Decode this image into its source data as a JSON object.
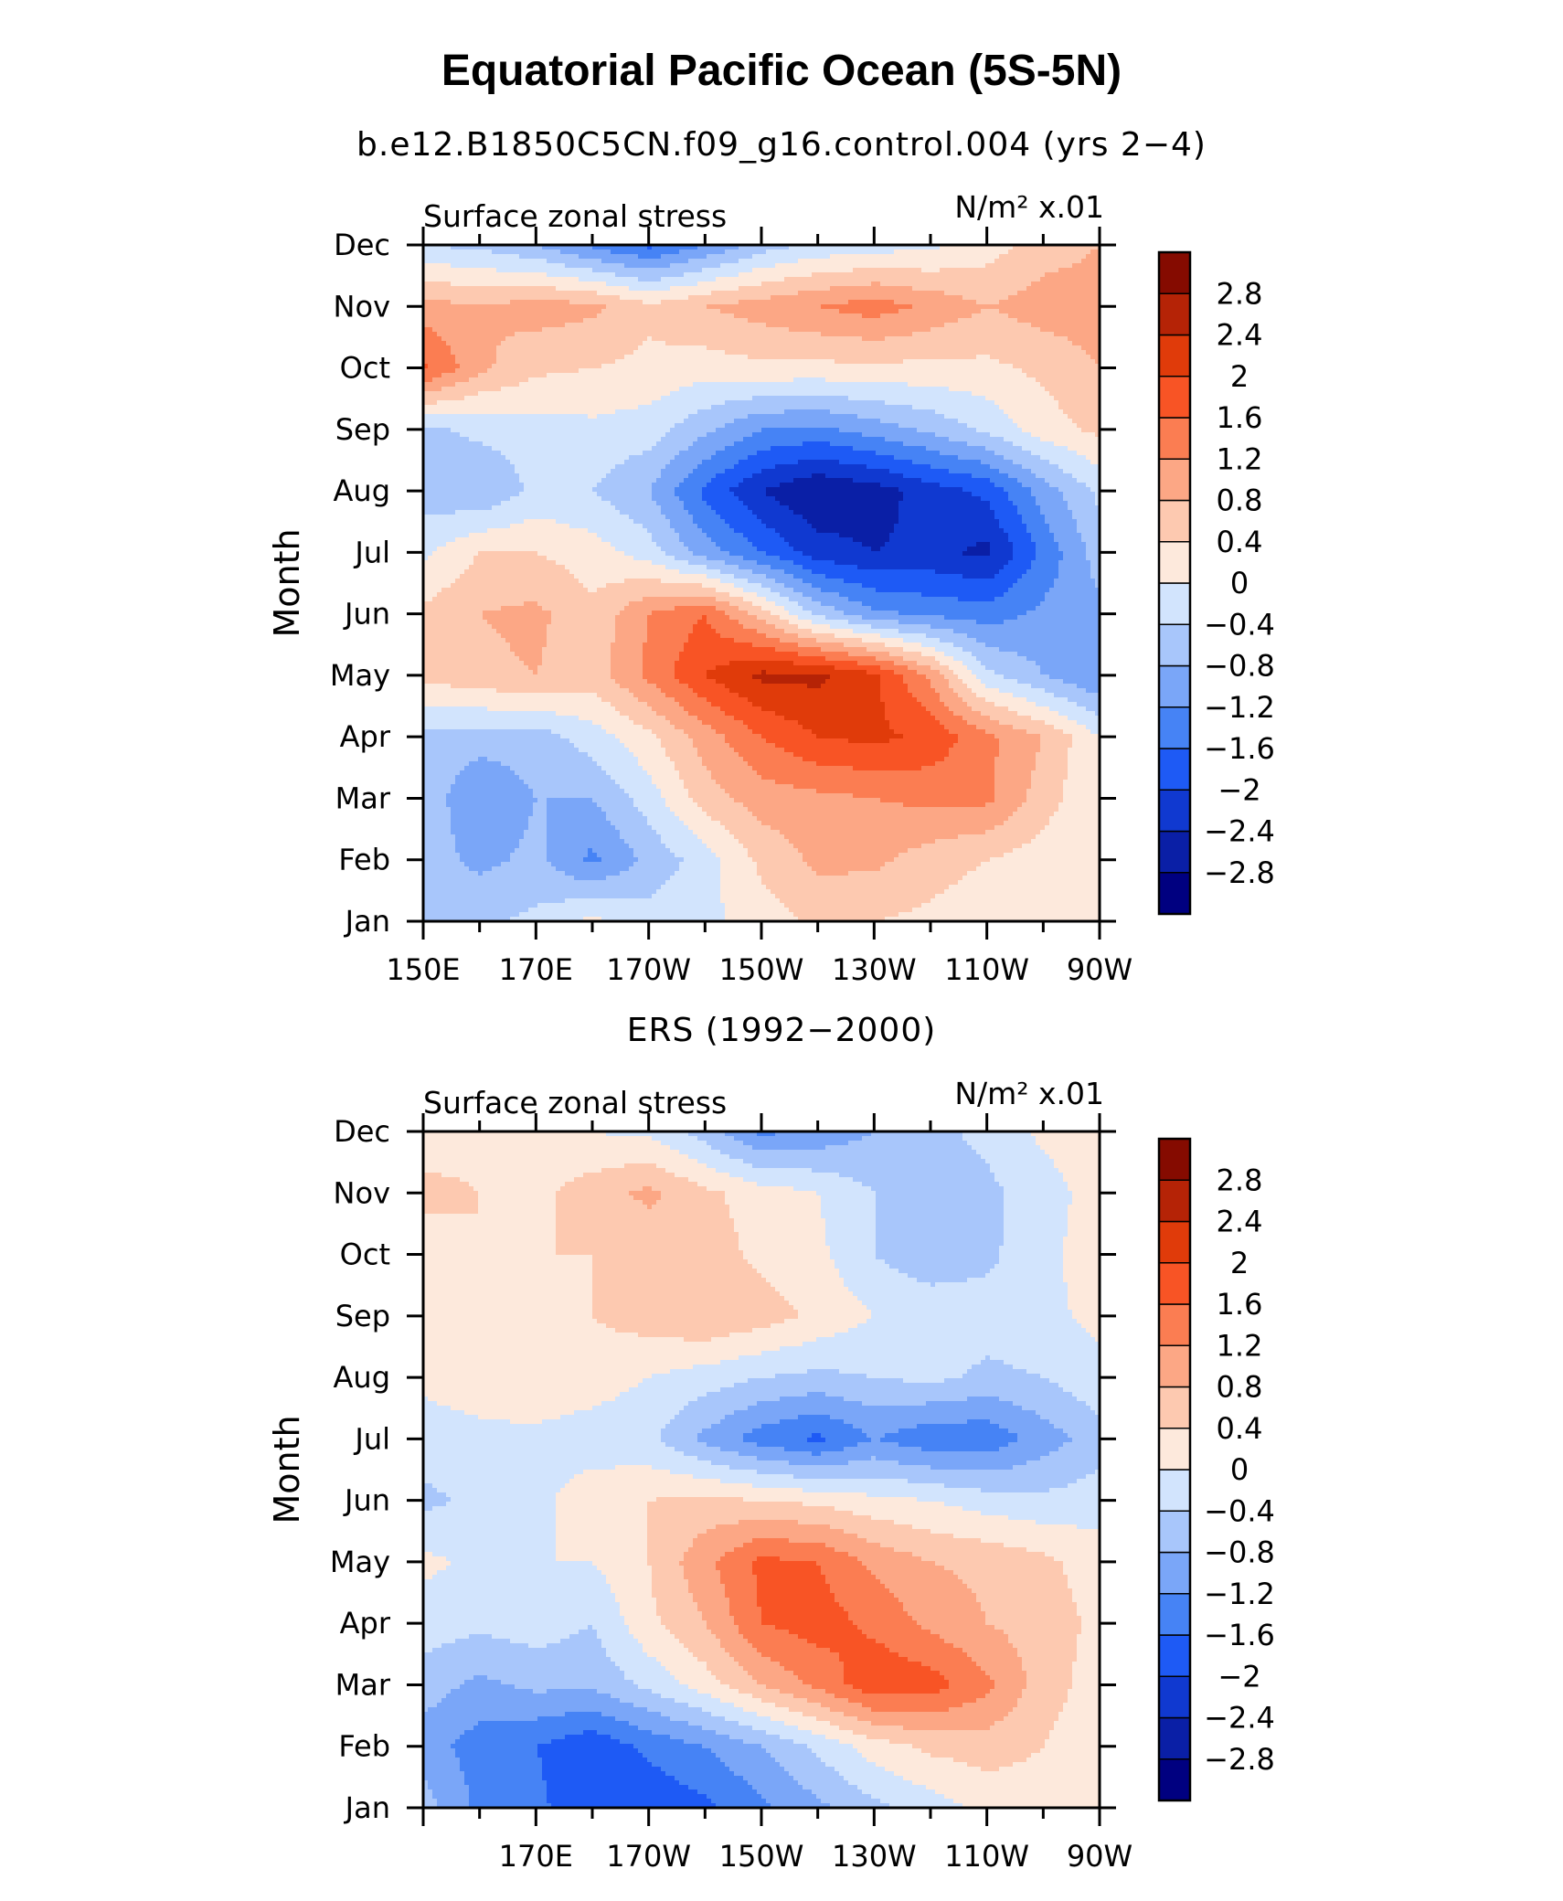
{
  "title": "Equatorial Pacific Ocean (5S-5N)",
  "colors": [
    "#000080",
    "#0a1fa6",
    "#1039d0",
    "#1e5af5",
    "#4683f5",
    "#7aa6f8",
    "#a8c6fb",
    "#d2e4fd",
    "#fde9dc",
    "#fdc9b0",
    "#fca785",
    "#fb7d52",
    "#f85425",
    "#e03b0a",
    "#b52306",
    "#850b00"
  ],
  "chart_data": [
    {
      "type": "heatmap",
      "subtitle": "b.e12.B1850C5CN.f09_g16.control.004 (yrs 2−4)",
      "left_label": "Surface zonal stress",
      "right_label": "N/m² x.01",
      "ylabel": "Month",
      "months": [
        "Jan",
        "Feb",
        "Mar",
        "Apr",
        "May",
        "Jun",
        "Jul",
        "Aug",
        "Sep",
        "Oct",
        "Nov",
        "Dec"
      ],
      "x_ticks": [
        "150E",
        "170E",
        "170W",
        "150W",
        "130W",
        "110W",
        "90W"
      ],
      "xlim_degE": [
        150,
        270
      ],
      "levels": [
        "−2.8",
        "−2.4",
        "−2",
        "−1.6",
        "−1.2",
        "−0.8",
        "−0.4",
        "0",
        "0.4",
        "0.8",
        "1.2",
        "1.6",
        "2",
        "2.4",
        "2.8"
      ],
      "lon_degE": [
        150,
        160,
        170,
        180,
        190,
        200,
        210,
        220,
        230,
        240,
        250,
        260,
        270
      ],
      "values": [
        [
          -0.5,
          -0.5,
          -0.3,
          0.1,
          -0.2,
          -0.1,
          0.2,
          0.5,
          0.4,
          0.3,
          0.1,
          0.1,
          0.0
        ],
        [
          -0.6,
          -0.9,
          -0.7,
          -1.3,
          -0.7,
          -0.2,
          0.5,
          0.9,
          0.9,
          0.6,
          0.4,
          0.2,
          0.0
        ],
        [
          -0.5,
          -1.2,
          -0.8,
          -0.8,
          -0.2,
          0.6,
          1.0,
          1.1,
          1.2,
          1.3,
          1.3,
          0.6,
          0.0
        ],
        [
          -0.5,
          -0.6,
          -0.6,
          -0.2,
          0.3,
          1.0,
          1.6,
          2.0,
          2.1,
          1.9,
          1.3,
          0.8,
          0.0
        ],
        [
          0.5,
          0.7,
          0.8,
          0.6,
          1.3,
          2.0,
          2.5,
          2.5,
          2.1,
          1.1,
          -0.3,
          -0.8,
          -1.2
        ],
        [
          0.5,
          0.8,
          0.9,
          0.5,
          1.2,
          1.6,
          0.6,
          -0.5,
          -1.1,
          -1.3,
          -1.4,
          -1.1,
          -0.9
        ],
        [
          -0.1,
          0.4,
          0.4,
          0.2,
          -0.2,
          -1.0,
          -1.6,
          -2.2,
          -2.4,
          -2.3,
          -2.5,
          -1.5,
          -0.6
        ],
        [
          -0.6,
          -0.8,
          -0.3,
          -0.4,
          -0.8,
          -1.7,
          -2.4,
          -2.8,
          -2.6,
          -2.2,
          -1.9,
          -1.0,
          -0.3
        ],
        [
          -0.5,
          -0.3,
          -0.2,
          -0.1,
          -0.2,
          -0.7,
          -1.2,
          -1.3,
          -1.0,
          -0.7,
          -0.3,
          0.2,
          0.5
        ],
        [
          1.7,
          0.9,
          0.5,
          0.4,
          0.3,
          0.2,
          0.3,
          0.3,
          0.3,
          0.3,
          0.3,
          0.5,
          0.8
        ],
        [
          1.0,
          0.8,
          1.0,
          0.9,
          0.5,
          0.8,
          1.0,
          1.2,
          1.4,
          1.1,
          0.8,
          1.0,
          1.0
        ],
        [
          -0.4,
          -0.5,
          -0.8,
          -1.3,
          -1.7,
          -1.2,
          -0.6,
          -0.3,
          -0.2,
          -0.1,
          0.2,
          0.6,
          0.8
        ]
      ]
    },
    {
      "type": "heatmap",
      "subtitle": "ERS (1992−2000)",
      "left_label": "Surface zonal stress",
      "right_label": "N/m² x.01",
      "ylabel": "Month",
      "months": [
        "Jan",
        "Feb",
        "Mar",
        "Apr",
        "May",
        "Jun",
        "Jul",
        "Aug",
        "Sep",
        "Oct",
        "Nov",
        "Dec"
      ],
      "x_ticks": [
        "",
        "170E",
        "170W",
        "150W",
        "130W",
        "110W",
        "90W"
      ],
      "xlim_degE": [
        150,
        270
      ],
      "levels": [
        "−2.8",
        "−2.4",
        "−2",
        "−1.6",
        "−1.2",
        "−0.8",
        "−0.4",
        "0",
        "0.4",
        "0.8",
        "1.2",
        "1.6",
        "2",
        "2.4",
        "2.8"
      ],
      "lon_degE": [
        150,
        160,
        170,
        180,
        190,
        200,
        210,
        220,
        230,
        240,
        250,
        260,
        270
      ],
      "values": [
        [
          -0.6,
          -1.3,
          -1.5,
          -1.9,
          -1.9,
          -1.7,
          -1.3,
          -0.9,
          -0.5,
          -0.2,
          0.1,
          0.2,
          0.1
        ],
        [
          -1.0,
          -1.4,
          -1.6,
          -1.9,
          -1.5,
          -1.2,
          -0.8,
          -0.3,
          0.2,
          0.5,
          0.6,
          0.4,
          0.1
        ],
        [
          -0.6,
          -0.9,
          -0.7,
          -0.7,
          -0.3,
          0.2,
          0.8,
          1.3,
          1.9,
          1.8,
          1.3,
          0.6,
          0.2
        ],
        [
          -0.2,
          -0.3,
          -0.2,
          -0.4,
          0.3,
          0.8,
          1.6,
          1.8,
          1.5,
          1.1,
          0.8,
          0.6,
          0.3
        ],
        [
          0.1,
          -0.1,
          0.0,
          0.0,
          0.4,
          1.1,
          1.7,
          1.6,
          1.1,
          0.8,
          0.7,
          0.5,
          0.2
        ],
        [
          -0.5,
          -0.3,
          -0.1,
          0.2,
          0.4,
          0.5,
          0.4,
          0.3,
          0.1,
          0.0,
          -0.2,
          -0.3,
          -0.2
        ],
        [
          -0.2,
          -0.1,
          -0.1,
          -0.2,
          -0.3,
          -0.9,
          -1.4,
          -1.7,
          -1.2,
          -1.5,
          -1.5,
          -1.0,
          -0.6
        ],
        [
          0.1,
          0.2,
          0.3,
          0.2,
          0.0,
          -0.2,
          -0.4,
          -0.5,
          -0.4,
          -0.3,
          -0.5,
          -0.4,
          -0.1
        ],
        [
          0.1,
          0.2,
          0.3,
          0.4,
          0.6,
          0.8,
          0.6,
          0.3,
          0.0,
          -0.1,
          -0.2,
          -0.1,
          0.1
        ],
        [
          0.2,
          0.4,
          0.4,
          0.4,
          0.5,
          0.6,
          0.3,
          0.1,
          -0.4,
          -0.7,
          -0.5,
          -0.1,
          0.2
        ],
        [
          0.5,
          0.4,
          0.3,
          0.6,
          0.9,
          0.5,
          0.2,
          0.0,
          -0.4,
          -0.6,
          -0.5,
          -0.2,
          0.2
        ],
        [
          0.2,
          0.3,
          0.1,
          0.0,
          -0.1,
          -0.6,
          -1.3,
          -1.1,
          -0.8,
          -0.5,
          -0.3,
          0.1,
          0.3
        ]
      ]
    }
  ]
}
